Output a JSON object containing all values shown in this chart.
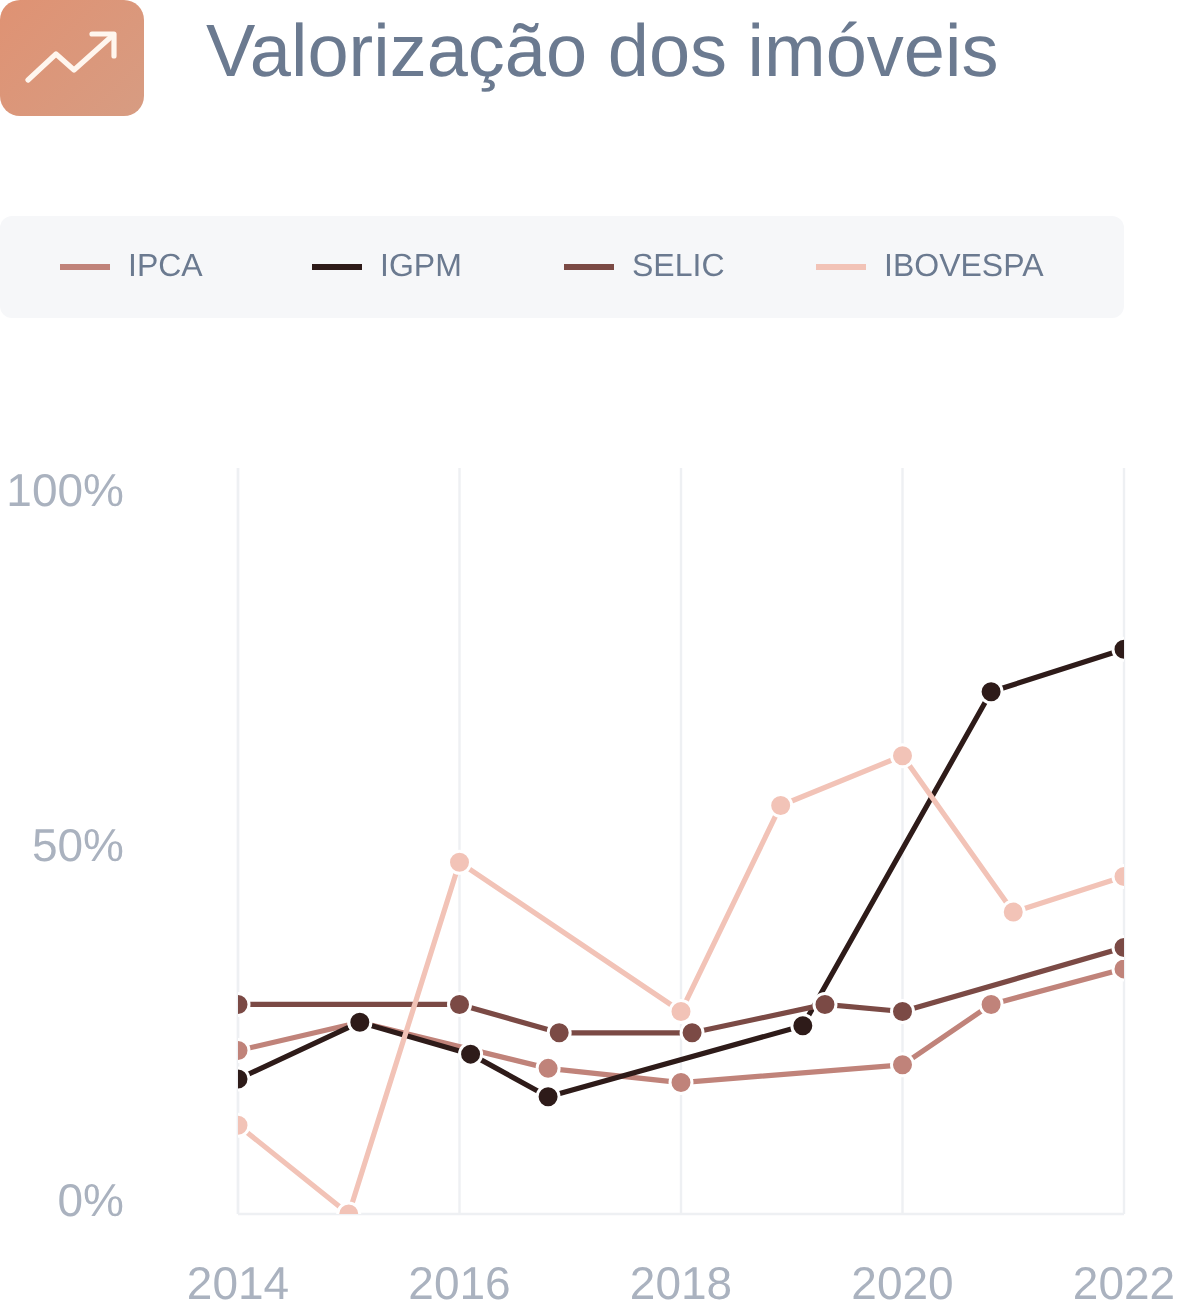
{
  "chart_data": {
    "type": "line",
    "title": "Valorização dos imóveis",
    "xlim": [
      2014,
      2022
    ],
    "xticks": [
      2014,
      2016,
      2018,
      2020,
      2022
    ],
    "ylim": [
      -2,
      103
    ],
    "yticks": [
      {
        "value": 0,
        "label": "0%"
      },
      {
        "value": 50,
        "label": "50%"
      },
      {
        "value": 100,
        "label": "100%"
      }
    ],
    "grid": "x",
    "legend": "top",
    "marker": "circle",
    "line_style": "solid",
    "series": [
      {
        "name": "IPCA",
        "color": "#c0837a",
        "x": [
          2014,
          2015.1,
          2016.8,
          2018,
          2020,
          2020.8,
          2022
        ],
        "values": [
          21,
          25,
          18.5,
          16.5,
          19,
          27.5,
          32.5
        ]
      },
      {
        "name": "IGPM",
        "color": "#2e1b19",
        "x": [
          2014,
          2015.1,
          2016.1,
          2016.8,
          2019.1,
          2020.8,
          2022
        ],
        "values": [
          17,
          25,
          20.5,
          14.5,
          24.5,
          71.5,
          77.5
        ]
      },
      {
        "name": "SELIC",
        "color": "#7b4a45",
        "x": [
          2014,
          2016,
          2016.9,
          2018.1,
          2019.3,
          2020,
          2022
        ],
        "values": [
          27.5,
          27.5,
          23.5,
          23.5,
          27.5,
          26.5,
          35.5
        ]
      },
      {
        "name": "IBOVESPA",
        "color": "#f2c3b7",
        "x": [
          2014,
          2015,
          2016,
          2018,
          2018.9,
          2020,
          2021,
          2022
        ],
        "values": [
          10.5,
          -2,
          47.5,
          26.5,
          55.5,
          62.5,
          40.5,
          45.5
        ]
      }
    ]
  }
}
